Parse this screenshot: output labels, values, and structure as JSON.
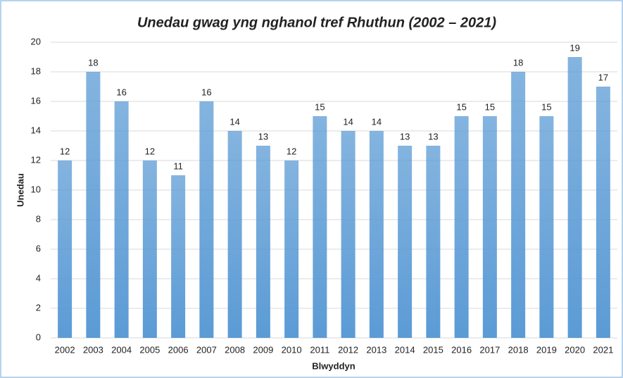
{
  "chart_data": {
    "type": "bar",
    "title": "Unedau gwag yng nghanol tref Rhuthun (2002 – 2021)",
    "x_label": "Blwyddyn",
    "y_label": "Unedau",
    "categories": [
      "2002",
      "2003",
      "2004",
      "2005",
      "2006",
      "2007",
      "2008",
      "2009",
      "2010",
      "2011",
      "2012",
      "2013",
      "2014",
      "2015",
      "2016",
      "2017",
      "2018",
      "2019",
      "2020",
      "2021"
    ],
    "values": [
      12,
      18,
      16,
      12,
      11,
      16,
      14,
      13,
      12,
      15,
      14,
      14,
      13,
      13,
      15,
      15,
      18,
      15,
      19,
      17
    ],
    "color": "#5b9bd5",
    "ylim": [
      0,
      20
    ],
    "yticks": [
      0,
      2,
      4,
      6,
      8,
      10,
      12,
      14,
      16,
      18,
      20
    ],
    "grid": true
  }
}
